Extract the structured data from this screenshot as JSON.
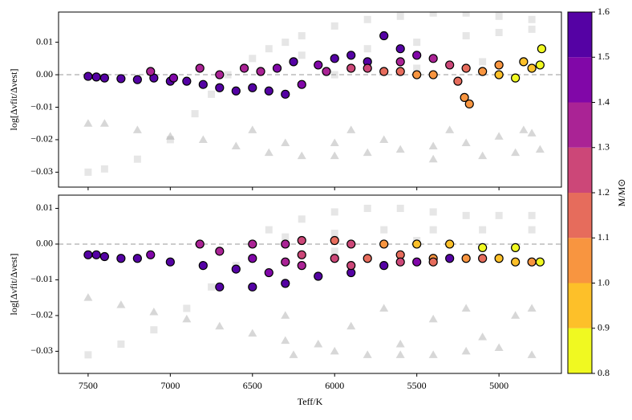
{
  "chart_data": [
    {
      "type": "scatter",
      "ylim": [
        -0.0346,
        0.0193
      ],
      "xlim": [
        7680,
        4620
      ],
      "xticks": [
        7500,
        7000,
        6500,
        6000,
        5500,
        5000
      ],
      "yticks": [
        {
          "value": 0.01,
          "label": "0.01"
        },
        {
          "value": 0,
          "label": "0.00"
        },
        {
          "value": -0.01,
          "label": "−0.01"
        },
        {
          "value": -0.02,
          "label": "−0.02"
        },
        {
          "value": -0.03,
          "label": "−0.03"
        }
      ],
      "ylabel": "log[Δνfit/Δνest]",
      "hline": 0,
      "series": [
        {
          "marker": "square",
          "color": "#b8b8b8",
          "x": [
            7500,
            7400,
            7200,
            7000,
            6850,
            6750,
            6650,
            6500,
            6400,
            6300,
            6200,
            6000,
            5800,
            5600,
            5400,
            5200,
            5000,
            4800,
            6200,
            5800,
            5500,
            5200,
            5000,
            4800,
            6000,
            5500,
            5100
          ],
          "values": [
            -0.03,
            -0.029,
            -0.026,
            -0.02,
            -0.012,
            -0.006,
            0,
            0.005,
            0.008,
            0.01,
            0.012,
            0.015,
            0.017,
            0.018,
            0.019,
            0.019,
            0.018,
            0.017,
            0.006,
            0.008,
            0.01,
            0.012,
            0.013,
            0.014,
            0,
            0.002,
            0.004
          ]
        },
        {
          "marker": "triangle",
          "color": "#9a9a9a",
          "x": [
            7500,
            7400,
            7200,
            7000,
            6800,
            6600,
            6400,
            6200,
            6000,
            5800,
            5600,
            5400,
            5200,
            5000,
            4800,
            6300,
            6000,
            5700,
            5400,
            5100,
            4900,
            4750,
            6500,
            5900,
            5300,
            4850
          ],
          "values": [
            -0.015,
            -0.015,
            -0.017,
            -0.019,
            -0.02,
            -0.022,
            -0.024,
            -0.025,
            -0.025,
            -0.024,
            -0.023,
            -0.022,
            -0.021,
            -0.019,
            -0.018,
            -0.021,
            -0.021,
            -0.02,
            -0.026,
            -0.025,
            -0.024,
            -0.023,
            -0.017,
            -0.017,
            -0.017,
            -0.017
          ]
        },
        {
          "marker": "circle",
          "x": [
            7500,
            7450,
            7400,
            7300,
            7200,
            7100,
            7000,
            6900,
            6800,
            6700,
            6600,
            6500,
            6400,
            6300,
            7120,
            6980,
            6820,
            6700,
            6550,
            6450,
            6350,
            6250,
            6100,
            6000,
            5900,
            5800,
            5700,
            5600,
            5500,
            5400,
            5300,
            5200,
            5100,
            5000,
            4900,
            4800,
            4750,
            4740,
            5180,
            5210,
            5250,
            5500,
            6200,
            6050,
            5900,
            5700,
            5600,
            5400,
            5000,
            4850,
            5600,
            5800
          ],
          "values": [
            -0.0005,
            -0.0007,
            -0.001,
            -0.0012,
            -0.0015,
            -0.001,
            -0.002,
            -0.002,
            -0.003,
            -0.004,
            -0.005,
            -0.004,
            -0.005,
            -0.006,
            0.001,
            -0.001,
            0.002,
            0,
            0.002,
            0.001,
            0.002,
            0.004,
            0.003,
            0.005,
            0.006,
            0.004,
            0.012,
            0.008,
            0.006,
            0.005,
            0.003,
            0.002,
            0.001,
            0,
            -0.001,
            0.002,
            0.003,
            0.008,
            -0.009,
            -0.007,
            -0.002,
            0,
            -0.003,
            0.001,
            0.002,
            0.001,
            0.001,
            0,
            0.003,
            0.004,
            0.004,
            0.002
          ],
          "mass": [
            1.6,
            1.6,
            1.6,
            1.6,
            1.6,
            1.55,
            1.55,
            1.5,
            1.5,
            1.5,
            1.5,
            1.6,
            1.55,
            1.6,
            1.35,
            1.4,
            1.3,
            1.35,
            1.3,
            1.35,
            1.4,
            1.5,
            1.45,
            1.55,
            1.6,
            1.5,
            1.6,
            1.55,
            1.45,
            1.35,
            1.25,
            1.15,
            1.05,
            0.95,
            0.85,
            0.9,
            0.85,
            0.85,
            1.05,
            1.05,
            1.15,
            1.05,
            1.4,
            1.3,
            1.2,
            1.15,
            1.1,
            1.0,
            1.0,
            0.95,
            1.3,
            1.25
          ]
        }
      ]
    },
    {
      "type": "scatter",
      "ylim": [
        -0.0362,
        0.0137
      ],
      "xlim": [
        7680,
        4620
      ],
      "xticks": [
        7500,
        7000,
        6500,
        6000,
        5500,
        5000
      ],
      "yticks": [
        {
          "value": 0.01,
          "label": "0.01"
        },
        {
          "value": 0,
          "label": "0.00"
        },
        {
          "value": -0.01,
          "label": "−0.01"
        },
        {
          "value": -0.02,
          "label": "−0.02"
        },
        {
          "value": -0.03,
          "label": "−0.03"
        }
      ],
      "ylabel": "log[Δνfit/Δνest]",
      "xlabel": "Teff/K",
      "hline": 0,
      "series": [
        {
          "marker": "square",
          "color": "#b8b8b8",
          "x": [
            7500,
            7300,
            7100,
            6900,
            6750,
            6600,
            6500,
            6400,
            6200,
            6000,
            5800,
            5600,
            5400,
            5200,
            5000,
            4800,
            6300,
            6000,
            5700,
            5400,
            5100,
            4800,
            6000,
            5500
          ],
          "values": [
            -0.031,
            -0.028,
            -0.024,
            -0.018,
            -0.012,
            -0.006,
            0,
            0.004,
            0.007,
            0.009,
            0.01,
            0.01,
            0.009,
            0.008,
            0.008,
            0.008,
            0.002,
            0.003,
            0.004,
            0.004,
            0.004,
            0.004,
            -0.002,
            0.001
          ]
        },
        {
          "marker": "triangle",
          "color": "#9a9a9a",
          "x": [
            7500,
            7300,
            7100,
            6900,
            6700,
            6500,
            6300,
            6100,
            6000,
            5800,
            5600,
            5400,
            5200,
            5000,
            4800,
            6300,
            6250,
            5900,
            5700,
            5600,
            5400,
            5200,
            5100,
            4900,
            4800
          ],
          "values": [
            -0.015,
            -0.017,
            -0.019,
            -0.021,
            -0.023,
            -0.025,
            -0.027,
            -0.028,
            -0.03,
            -0.031,
            -0.031,
            -0.031,
            -0.03,
            -0.029,
            -0.031,
            -0.02,
            -0.031,
            -0.023,
            -0.018,
            -0.028,
            -0.021,
            -0.018,
            -0.026,
            -0.02,
            -0.018
          ]
        },
        {
          "marker": "circle",
          "x": [
            7500,
            7450,
            7400,
            7300,
            7200,
            7000,
            6800,
            6600,
            6400,
            6700,
            6500,
            6300,
            6100,
            5900,
            5700,
            5500,
            5300,
            7120,
            6820,
            6700,
            6500,
            6300,
            6200,
            6000,
            5800,
            5600,
            5400,
            5200,
            5000,
            4900,
            4750,
            6500,
            6300,
            6200,
            6000,
            5900,
            5700,
            5500,
            5300,
            5100,
            4900,
            6200,
            5900,
            5600,
            5400,
            5100,
            4800
          ],
          "values": [
            -0.003,
            -0.003,
            -0.0035,
            -0.004,
            -0.004,
            -0.005,
            -0.006,
            -0.007,
            -0.008,
            -0.012,
            -0.012,
            -0.011,
            -0.009,
            -0.008,
            -0.006,
            -0.005,
            -0.004,
            -0.003,
            0,
            -0.002,
            -0.004,
            -0.005,
            -0.003,
            -0.004,
            -0.004,
            -0.003,
            -0.004,
            -0.004,
            -0.004,
            -0.005,
            -0.005,
            0,
            0,
            0.001,
            0.001,
            0,
            0,
            0,
            0,
            -0.001,
            -0.001,
            -0.006,
            -0.006,
            -0.005,
            -0.005,
            -0.004,
            -0.005
          ],
          "mass": [
            1.6,
            1.6,
            1.6,
            1.6,
            1.55,
            1.6,
            1.55,
            1.5,
            1.45,
            1.6,
            1.6,
            1.6,
            1.55,
            1.5,
            1.5,
            1.45,
            1.5,
            1.4,
            1.3,
            1.35,
            1.4,
            1.35,
            1.2,
            1.25,
            1.15,
            1.1,
            1.05,
            1.0,
            0.95,
            0.9,
            0.85,
            1.35,
            1.3,
            1.25,
            1.15,
            1.2,
            1.05,
            0.95,
            0.9,
            0.85,
            0.85,
            1.3,
            1.25,
            1.2,
            1.15,
            1.1,
            1.0
          ]
        }
      ]
    },
    {
      "type": "colorbar",
      "label": "M/M⊙",
      "ticks": [
        0.8,
        0.9,
        {
          "value": 1,
          "label": "1.0"
        },
        1.1,
        1.2,
        1.3,
        1.4,
        1.5,
        1.6
      ],
      "colors": [
        "#f0f921",
        "#fdc029",
        "#f89540",
        "#e66c5c",
        "#cc4778",
        "#aa2395",
        "#8107a8",
        "#5502a4",
        "#0d0887"
      ]
    }
  ]
}
